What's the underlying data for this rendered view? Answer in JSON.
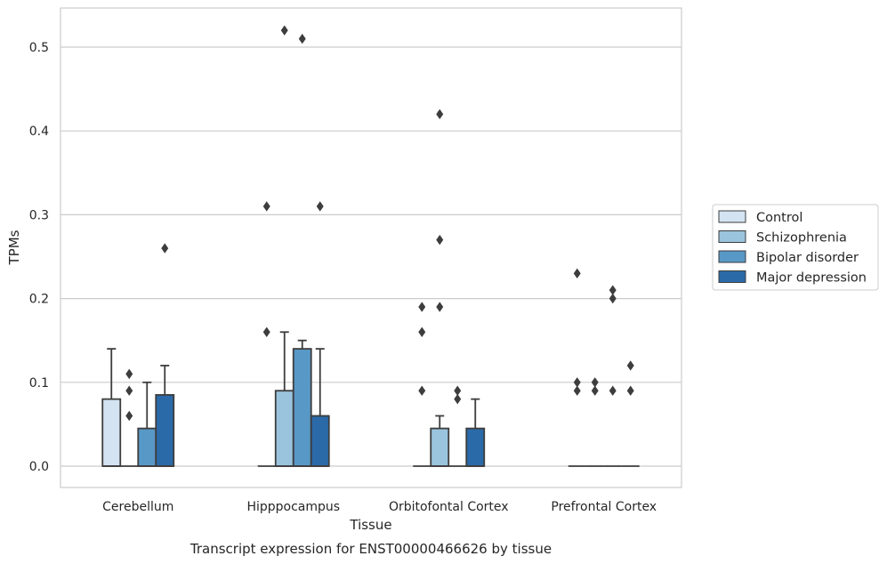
{
  "chart_data": {
    "type": "box",
    "xlabel": "Tissue",
    "ylabel": "TPMs",
    "caption": "Transcript expression for ENST00000466626 by tissue",
    "ylim": [
      -0.025,
      0.547
    ],
    "yticks": [
      0.0,
      0.1,
      0.2,
      0.3,
      0.4,
      0.5
    ],
    "ytick_labels": [
      "0.0",
      "0.1",
      "0.2",
      "0.3",
      "0.4",
      "0.5"
    ],
    "grid": true,
    "legend_position": "right",
    "categories": [
      "Cerebellum",
      "Hipppocampus",
      "Orbitofontal Cortex",
      "Prefrontal Cortex"
    ],
    "series": [
      {
        "name": "Control",
        "color": "#d4e3f1",
        "boxes": [
          {
            "q1": 0.0,
            "median": 0.0,
            "q3": 0.08,
            "whisker_low": 0.0,
            "whisker_high": 0.14,
            "outliers": []
          },
          {
            "q1": 0.0,
            "median": 0.0,
            "q3": 0.0,
            "whisker_low": 0.0,
            "whisker_high": 0.0,
            "outliers": [
              0.16,
              0.31
            ]
          },
          {
            "q1": 0.0,
            "median": 0.0,
            "q3": 0.0,
            "whisker_low": 0.0,
            "whisker_high": 0.0,
            "outliers": [
              0.09,
              0.16,
              0.19
            ]
          },
          {
            "q1": 0.0,
            "median": 0.0,
            "q3": 0.0,
            "whisker_low": 0.0,
            "whisker_high": 0.0,
            "outliers": [
              0.09,
              0.1,
              0.23
            ]
          }
        ]
      },
      {
        "name": "Schizophrenia",
        "color": "#9ac4de",
        "boxes": [
          {
            "q1": 0.0,
            "median": 0.0,
            "q3": 0.0,
            "whisker_low": 0.0,
            "whisker_high": 0.0,
            "outliers": [
              0.06,
              0.09,
              0.11
            ]
          },
          {
            "q1": 0.0,
            "median": 0.0,
            "q3": 0.09,
            "whisker_low": 0.0,
            "whisker_high": 0.16,
            "outliers": [
              0.52
            ]
          },
          {
            "q1": 0.0,
            "median": 0.0,
            "q3": 0.045,
            "whisker_low": 0.0,
            "whisker_high": 0.06,
            "outliers": [
              0.19,
              0.27,
              0.42
            ]
          },
          {
            "q1": 0.0,
            "median": 0.0,
            "q3": 0.0,
            "whisker_low": 0.0,
            "whisker_high": 0.0,
            "outliers": [
              0.09,
              0.1
            ]
          }
        ]
      },
      {
        "name": "Bipolar disorder",
        "color": "#5898c6",
        "boxes": [
          {
            "q1": 0.0,
            "median": 0.0,
            "q3": 0.045,
            "whisker_low": 0.0,
            "whisker_high": 0.1,
            "outliers": []
          },
          {
            "q1": 0.0,
            "median": 0.0,
            "q3": 0.14,
            "whisker_low": 0.0,
            "whisker_high": 0.15,
            "outliers": [
              0.51
            ]
          },
          {
            "q1": 0.0,
            "median": 0.0,
            "q3": 0.0,
            "whisker_low": 0.0,
            "whisker_high": 0.0,
            "outliers": [
              0.08,
              0.09
            ]
          },
          {
            "q1": 0.0,
            "median": 0.0,
            "q3": 0.0,
            "whisker_low": 0.0,
            "whisker_high": 0.0,
            "outliers": [
              0.09,
              0.2,
              0.21
            ]
          }
        ]
      },
      {
        "name": "Major depression",
        "color": "#2b6aa8",
        "boxes": [
          {
            "q1": 0.0,
            "median": 0.0,
            "q3": 0.085,
            "whisker_low": 0.0,
            "whisker_high": 0.12,
            "outliers": [
              0.26
            ]
          },
          {
            "q1": 0.0,
            "median": 0.0,
            "q3": 0.06,
            "whisker_low": 0.0,
            "whisker_high": 0.14,
            "outliers": [
              0.31
            ]
          },
          {
            "q1": 0.0,
            "median": 0.0,
            "q3": 0.045,
            "whisker_low": 0.0,
            "whisker_high": 0.08,
            "outliers": []
          },
          {
            "q1": 0.0,
            "median": 0.0,
            "q3": 0.0,
            "whisker_low": 0.0,
            "whisker_high": 0.0,
            "outliers": [
              0.09,
              0.12
            ]
          }
        ]
      }
    ]
  }
}
